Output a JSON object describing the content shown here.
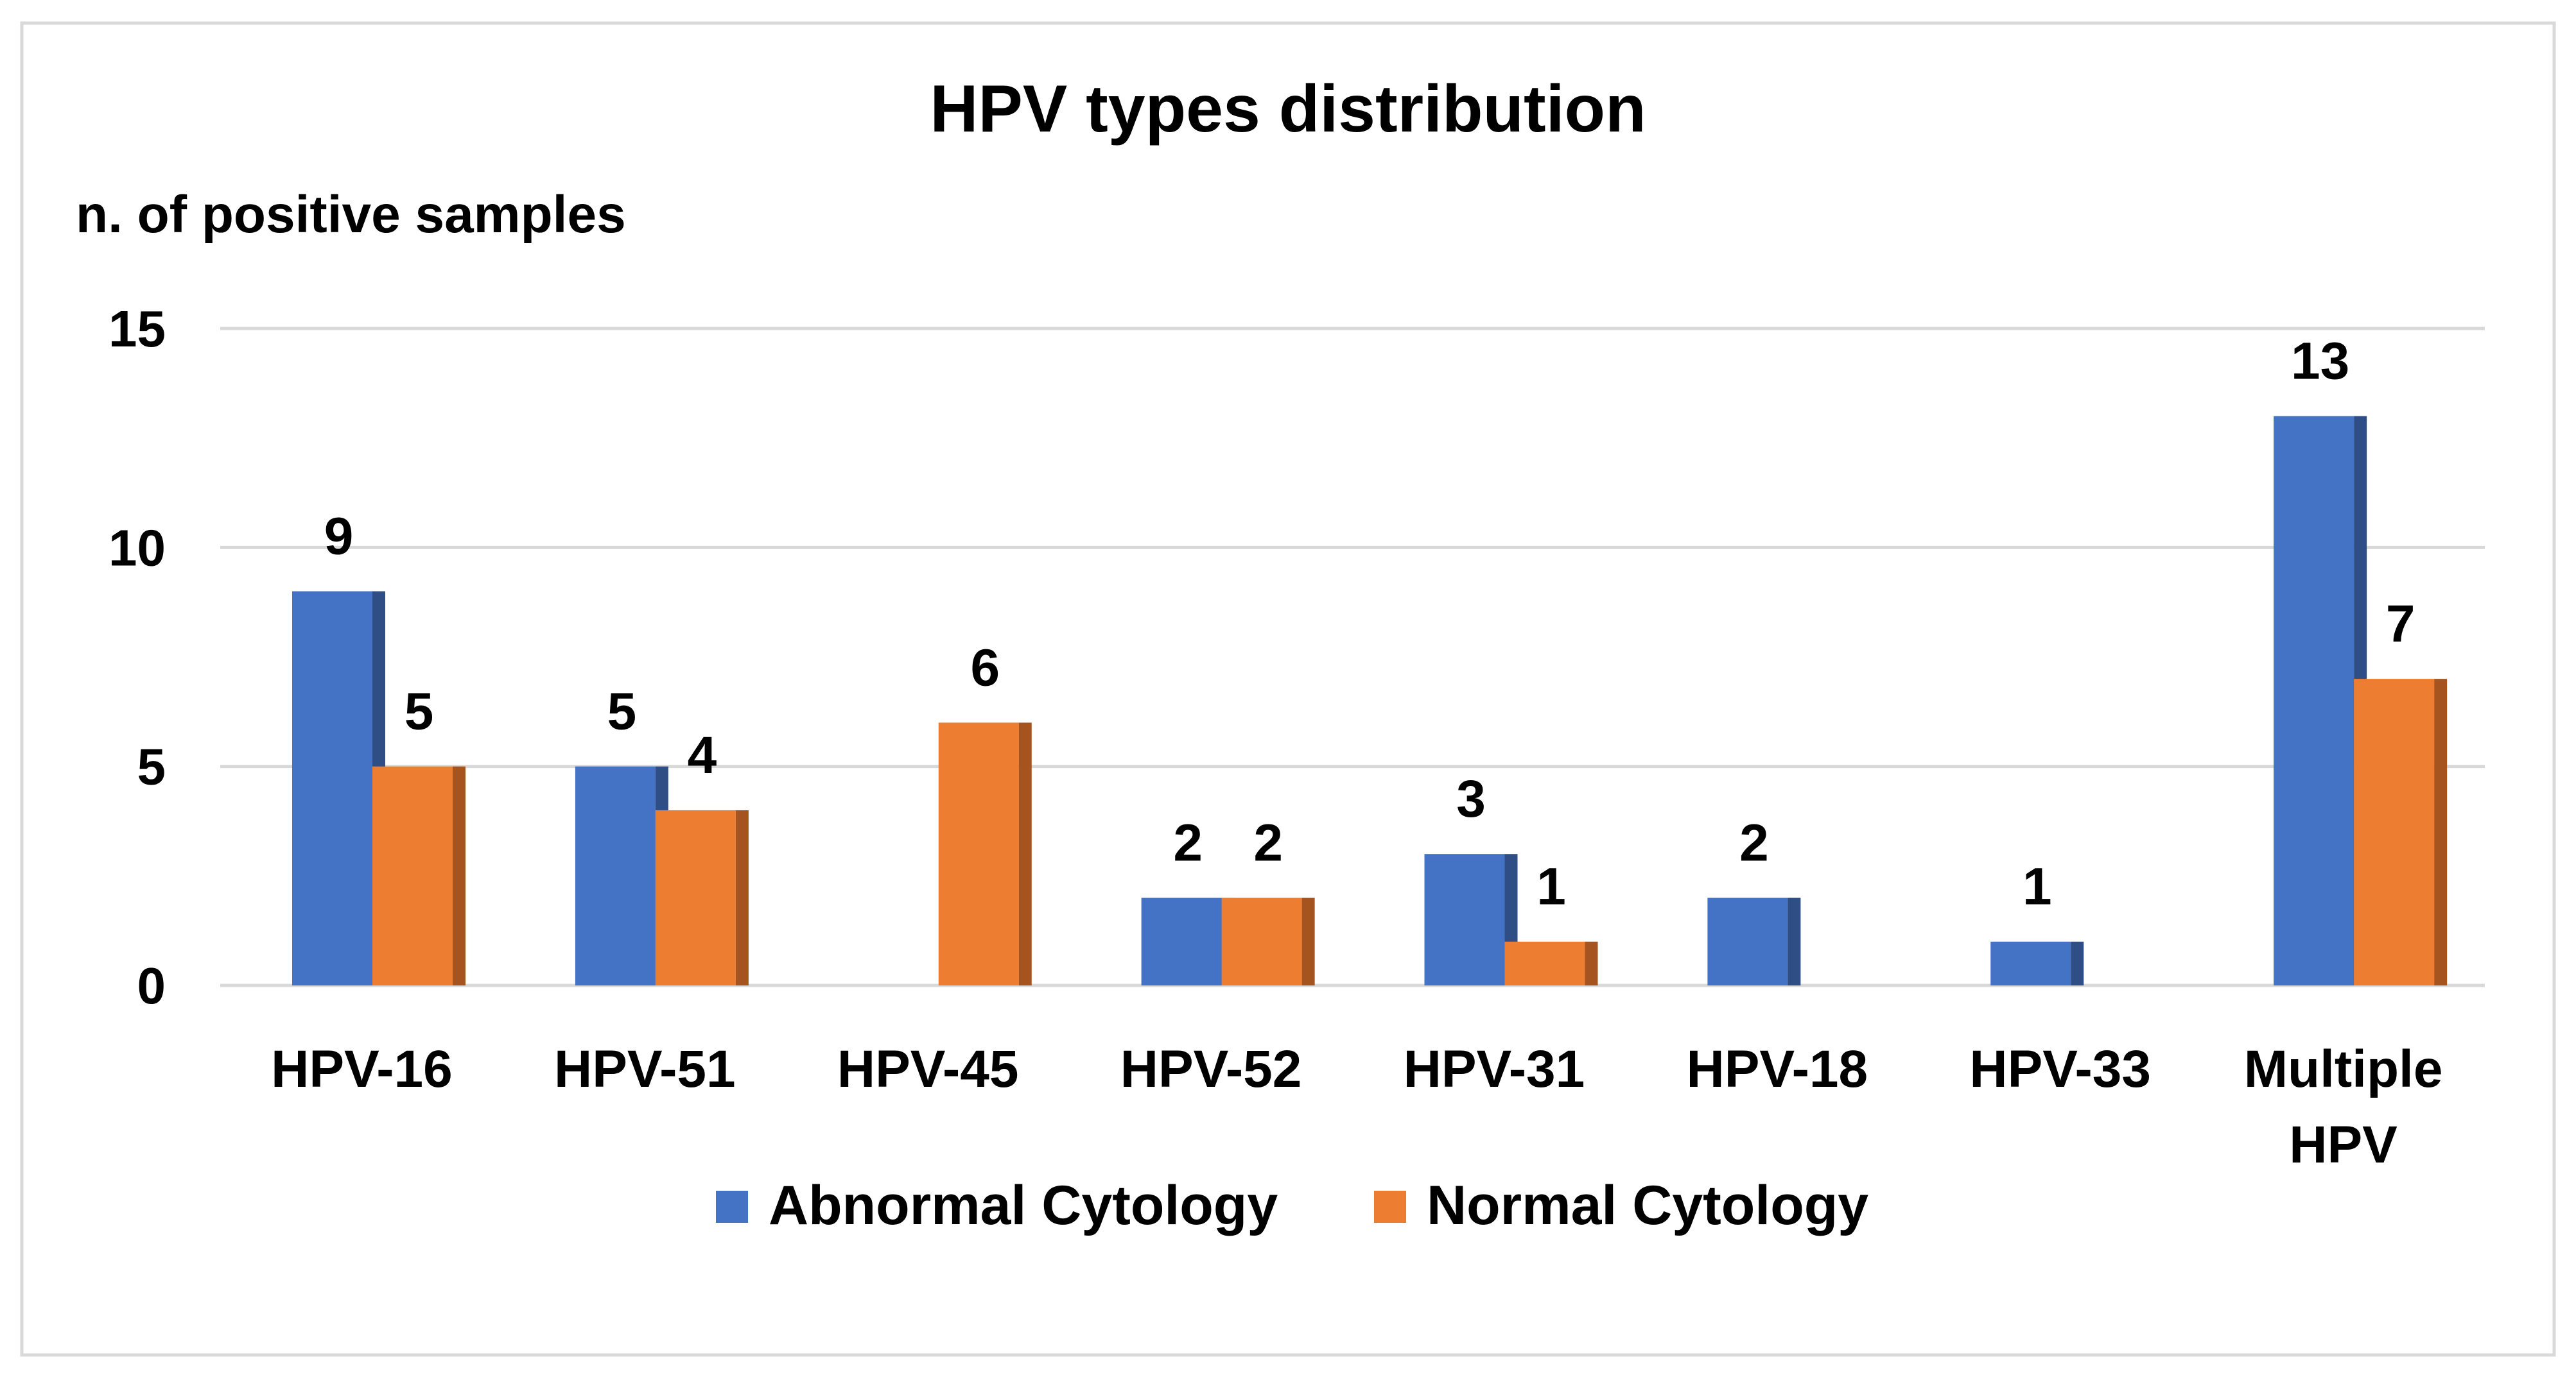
{
  "chart_data": {
    "type": "bar",
    "title": "HPV types distribution",
    "ylabel": "n. of positive samples",
    "xlabel": "",
    "categories": [
      [
        "HPV-16"
      ],
      [
        "HPV-51"
      ],
      [
        "HPV-45"
      ],
      [
        "HPV-52"
      ],
      [
        "HPV-31"
      ],
      [
        "HPV-18"
      ],
      [
        "HPV-33"
      ],
      [
        "Multiple",
        "HPV"
      ]
    ],
    "series": [
      {
        "name": "Abnormal Cytology",
        "color": "#4472C4",
        "side_color": "#2F4E86",
        "values": [
          9,
          5,
          null,
          2,
          3,
          2,
          1,
          13
        ]
      },
      {
        "name": "Normal Cytology",
        "color": "#ED7D31",
        "side_color": "#A5541F",
        "values": [
          5,
          4,
          6,
          2,
          1,
          null,
          null,
          7
        ]
      }
    ],
    "ylim": [
      0,
      15
    ],
    "yticks": [
      0,
      5,
      10,
      15
    ],
    "grid": true,
    "legend": "bottom-center",
    "border_color": "#D9D9D9",
    "grid_color": "#D9D9D9"
  }
}
